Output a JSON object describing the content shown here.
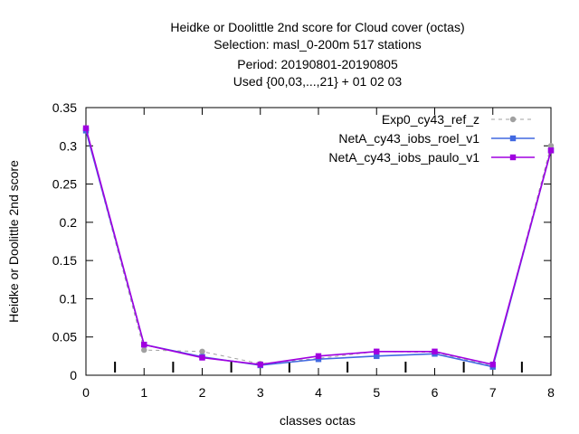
{
  "chart_data": {
    "type": "line",
    "title_lines": [
      "Heidke or Doolittle 2nd score  for Cloud cover (octas)",
      "Selection: masl_0-200m    517 stations",
      "Period: 20190801-20190805",
      "Used {00,03,...,21} + 01 02 03"
    ],
    "xlabel": "classes octas",
    "ylabel": "Heidke or Doolittle 2nd score",
    "x": [
      0,
      1,
      2,
      3,
      4,
      5,
      6,
      7,
      8
    ],
    "xlim": [
      0,
      8
    ],
    "ylim": [
      0,
      0.35
    ],
    "xticks": [
      "0",
      "1",
      "2",
      "3",
      "4",
      "5",
      "6",
      "7",
      "8"
    ],
    "yticks": [
      "0",
      "0.05",
      "0.1",
      "0.15",
      "0.2",
      "0.25",
      "0.3",
      "0.35"
    ],
    "ytick_values": [
      0,
      0.05,
      0.1,
      0.15,
      0.2,
      0.25,
      0.3,
      0.35
    ],
    "minor_bar_x": [
      0.5,
      1.5,
      2.5,
      3.5,
      4.5,
      5.5,
      6.5,
      7.5
    ],
    "legend_position": "top-right",
    "grid": false,
    "series": [
      {
        "name": "Exp0_cy43_ref_z",
        "color": "#a0a0a0",
        "style": "dashed",
        "marker": "circle",
        "values": [
          0.32,
          0.033,
          0.031,
          0.015,
          0.022,
          0.031,
          0.03,
          0.012,
          0.3
        ]
      },
      {
        "name": "NetA_cy43_iobs_roel_v1",
        "color": "#4169e1",
        "style": "solid",
        "marker": "square",
        "values": [
          0.32,
          0.04,
          0.024,
          0.013,
          0.021,
          0.025,
          0.028,
          0.011,
          0.294
        ]
      },
      {
        "name": "NetA_cy43_iobs_paulo_v1",
        "color": "#a000e0",
        "style": "solid",
        "marker": "square",
        "values": [
          0.323,
          0.04,
          0.023,
          0.014,
          0.025,
          0.031,
          0.031,
          0.014,
          0.294
        ]
      }
    ]
  }
}
